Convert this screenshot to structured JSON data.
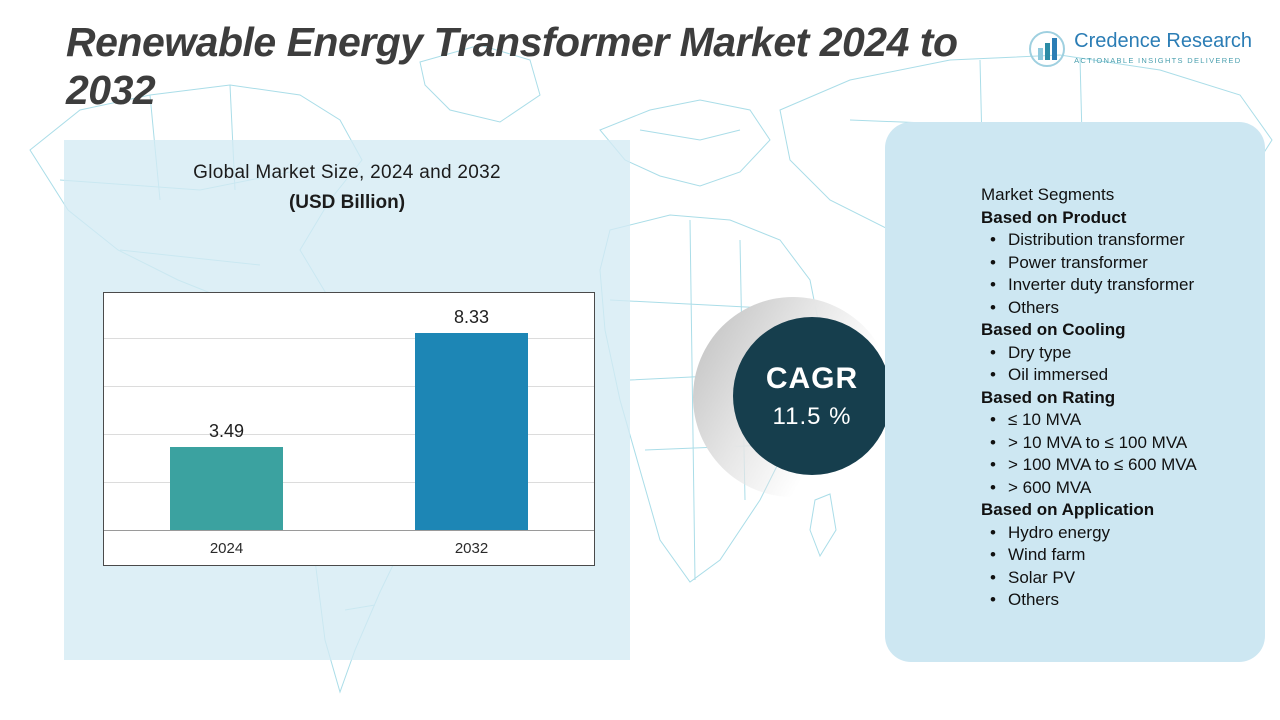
{
  "header": {
    "title": "Renewable Energy Transformer Market 2024 to 2032",
    "logo": {
      "name": "Credence Research",
      "tagline": "Actionable Insights Delivered"
    }
  },
  "chart_panel": {
    "title": "Global Market Size, 2024 and 2032",
    "subtitle": "(USD Billion)"
  },
  "chart_data": {
    "type": "bar",
    "title": "Global Market Size, 2024 and 2032 (USD Billion)",
    "categories": [
      "2024",
      "2032"
    ],
    "values": [
      3.49,
      8.33
    ],
    "value_labels": [
      "3.49",
      "8.33"
    ],
    "bar_colors": [
      "#3ba2a0",
      "#1d86b5"
    ],
    "xlabel": "",
    "ylabel": "",
    "ylim": [
      0,
      10
    ],
    "grid": true,
    "legend": false
  },
  "cagr": {
    "label": "CAGR",
    "value": "11.5 %"
  },
  "segments": {
    "title": "Market Segments",
    "bullet": "•",
    "groups": [
      {
        "heading": "Based on Product",
        "items": [
          "Distribution transformer",
          "Power transformer",
          "Inverter duty transformer",
          "Others"
        ]
      },
      {
        "heading": "Based on Cooling",
        "items": [
          "Dry type",
          "Oil immersed"
        ]
      },
      {
        "heading": "Based on Rating",
        "items": [
          "≤ 10 MVA",
          "> 10 MVA to ≤ 100 MVA",
          "> 100 MVA to ≤ 600 MVA",
          "> 600 MVA"
        ]
      },
      {
        "heading": "Based on Application",
        "items": [
          "Hydro energy",
          "Wind farm",
          "Solar PV",
          "Others"
        ]
      }
    ]
  },
  "colors": {
    "bar_2024": "#3ba2a0",
    "bar_2032": "#1d86b5",
    "cagr_circle": "#163e4d",
    "left_panel_bg": "#d4eaf3",
    "right_panel_bg": "#cde7f2",
    "map_line": "#aadde8",
    "brand_blue": "#2b7db5",
    "title_text": "#3d3d3d"
  }
}
